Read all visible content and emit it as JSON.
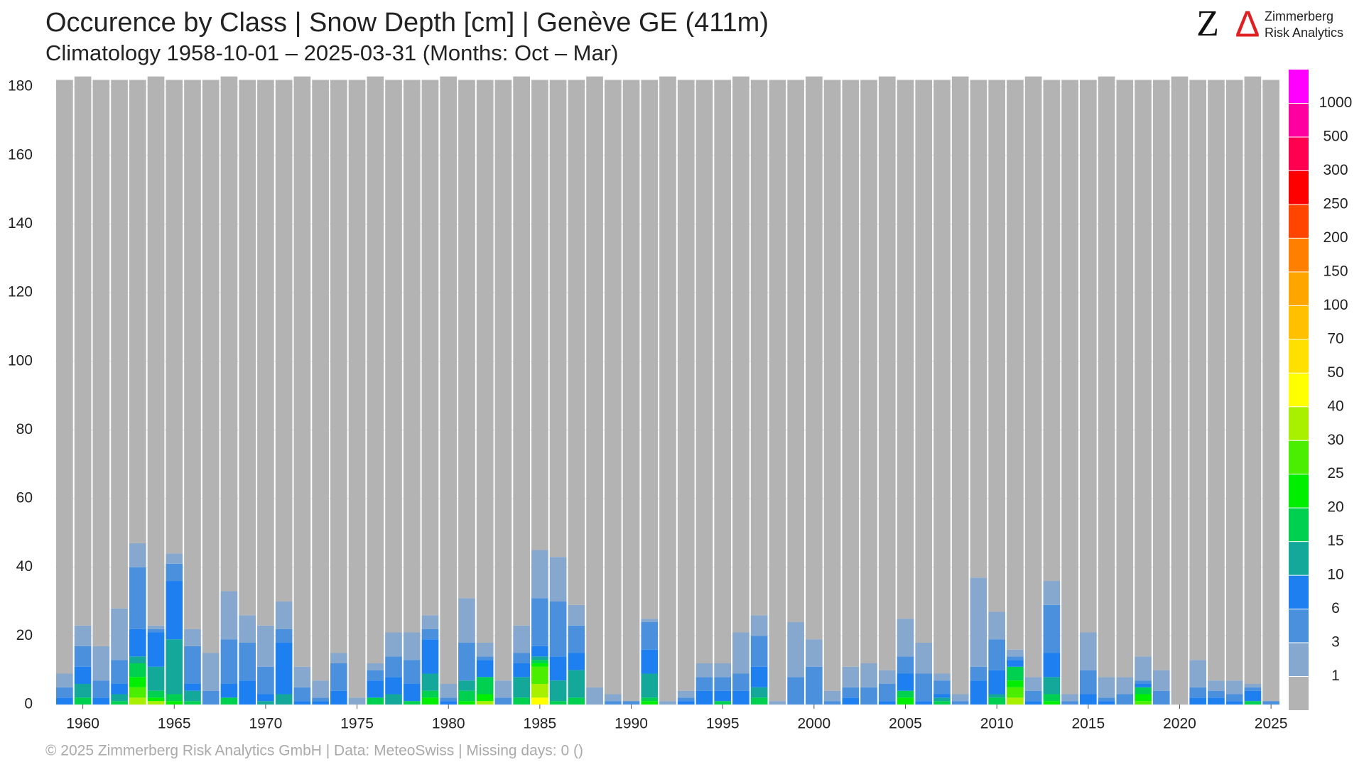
{
  "chart_data": {
    "type": "stacked_bar",
    "title": "Occurence by Class | Snow Depth [cm] | Genève  GE (411m)",
    "subtitle": "Climatology 1958-10-01 – 2025-03-31 (Months: Oct – Mar)",
    "footer": "©  2025 Zimmerberg Risk Analytics GmbH | Data: MeteoSwiss | Missing days: 0 ()",
    "categories": [
      null,
      "1960",
      null,
      null,
      null,
      null,
      "1965",
      null,
      null,
      null,
      null,
      "1970",
      null,
      null,
      null,
      null,
      "1975",
      null,
      null,
      null,
      null,
      "1980",
      null,
      null,
      null,
      null,
      "1985",
      null,
      null,
      null,
      null,
      "1990",
      null,
      null,
      null,
      null,
      "1995",
      null,
      null,
      null,
      null,
      "2000",
      null,
      null,
      null,
      null,
      "2005",
      null,
      null,
      null,
      null,
      "2010",
      null,
      null,
      null,
      null,
      "2015",
      null,
      null,
      null,
      null,
      "2020",
      null,
      null,
      null,
      null,
      "2025"
    ],
    "ylim": [
      0,
      185
    ],
    "yticks": [
      0,
      20,
      40,
      60,
      80,
      100,
      120,
      140,
      160,
      180
    ],
    "grid": true,
    "series": [
      {
        "color": "#ffff00",
        "values": [
          0,
          0,
          0,
          0,
          0,
          0,
          0,
          0,
          0,
          0,
          0,
          0,
          0,
          0,
          0,
          0,
          0,
          0,
          0,
          0,
          0,
          0,
          0,
          0,
          0,
          0,
          2,
          0,
          0,
          0,
          0,
          0,
          0,
          0,
          0,
          0,
          0,
          0,
          0,
          0,
          0,
          0,
          0,
          0,
          0,
          0,
          0,
          0,
          0,
          0,
          0,
          0,
          0,
          0,
          0,
          0,
          0,
          0,
          0,
          0,
          0,
          0,
          0,
          0,
          0,
          0,
          0
        ]
      },
      {
        "color": "#a8f000",
        "values": [
          0,
          0,
          0,
          0,
          2,
          1,
          0,
          0,
          0,
          0,
          0,
          0,
          0,
          0,
          0,
          0,
          0,
          0,
          0,
          0,
          0,
          0,
          0,
          1,
          0,
          0,
          4,
          0,
          0,
          0,
          0,
          0,
          0,
          0,
          0,
          0,
          0,
          0,
          0,
          0,
          0,
          0,
          0,
          0,
          0,
          0,
          0,
          0,
          0,
          0,
          0,
          0,
          2,
          0,
          0,
          0,
          0,
          0,
          0,
          0,
          0,
          0,
          0,
          0,
          0,
          0,
          0
        ]
      },
      {
        "color": "#4cee00",
        "values": [
          0,
          0,
          0,
          0,
          3,
          0,
          0,
          0,
          0,
          0,
          0,
          0,
          0,
          0,
          0,
          0,
          0,
          0,
          0,
          0,
          0,
          0,
          0,
          0,
          0,
          0,
          5,
          0,
          0,
          0,
          0,
          0,
          0,
          0,
          0,
          0,
          0,
          0,
          0,
          0,
          0,
          0,
          0,
          0,
          0,
          0,
          0,
          0,
          0,
          0,
          0,
          0,
          3,
          0,
          0,
          0,
          0,
          0,
          0,
          1,
          0,
          0,
          0,
          0,
          0,
          0,
          0
        ]
      },
      {
        "color": "#00ee00",
        "values": [
          0,
          0,
          0,
          0,
          3,
          1,
          1,
          0,
          0,
          0,
          0,
          0,
          0,
          0,
          0,
          0,
          0,
          0,
          0,
          0,
          2,
          0,
          1,
          2,
          0,
          0,
          1,
          0,
          0,
          0,
          0,
          0,
          1,
          0,
          0,
          0,
          0,
          0,
          0,
          0,
          0,
          0,
          0,
          0,
          0,
          0,
          2,
          0,
          0,
          0,
          0,
          0,
          2,
          0,
          1,
          0,
          0,
          0,
          0,
          2,
          0,
          0,
          0,
          0,
          0,
          0,
          0
        ]
      },
      {
        "color": "#00d050",
        "values": [
          0,
          2,
          0,
          1,
          4,
          2,
          2,
          1,
          0,
          2,
          0,
          0,
          0,
          0,
          0,
          0,
          0,
          2,
          0,
          1,
          2,
          0,
          3,
          5,
          0,
          2,
          1,
          1,
          2,
          0,
          0,
          0,
          1,
          0,
          0,
          0,
          1,
          0,
          2,
          0,
          0,
          0,
          0,
          0,
          0,
          0,
          2,
          0,
          1,
          0,
          0,
          2,
          4,
          0,
          2,
          0,
          0,
          0,
          0,
          2,
          0,
          0,
          0,
          0,
          0,
          1,
          0
        ]
      },
      {
        "color": "#14a89a",
        "values": [
          0,
          4,
          0,
          2,
          2,
          7,
          16,
          3,
          0,
          0,
          0,
          1,
          3,
          0,
          0,
          0,
          0,
          0,
          3,
          0,
          5,
          0,
          3,
          0,
          0,
          6,
          1,
          6,
          8,
          0,
          0,
          0,
          7,
          0,
          0,
          0,
          0,
          0,
          3,
          0,
          0,
          0,
          0,
          0,
          0,
          0,
          0,
          0,
          1,
          0,
          0,
          1,
          0,
          0,
          5,
          0,
          0,
          0,
          0,
          0,
          0,
          0,
          0,
          0,
          0,
          0,
          0
        ]
      },
      {
        "color": "#1e80f0",
        "values": [
          2,
          5,
          2,
          3,
          8,
          10,
          17,
          2,
          0,
          4,
          7,
          2,
          15,
          1,
          1,
          4,
          0,
          5,
          5,
          5,
          10,
          1,
          0,
          5,
          0,
          4,
          3,
          7,
          5,
          0,
          0,
          0,
          7,
          0,
          1,
          4,
          3,
          4,
          6,
          0,
          0,
          0,
          0,
          2,
          0,
          1,
          5,
          1,
          1,
          0,
          7,
          7,
          2,
          1,
          7,
          0,
          3,
          1,
          0,
          1,
          0,
          0,
          2,
          2,
          1,
          3,
          0
        ]
      },
      {
        "color": "#4a90dc",
        "values": [
          3,
          6,
          5,
          7,
          18,
          1,
          5,
          11,
          4,
          13,
          11,
          8,
          4,
          4,
          1,
          8,
          0,
          3,
          6,
          7,
          3,
          1,
          11,
          1,
          2,
          3,
          14,
          16,
          8,
          0,
          1,
          1,
          8,
          0,
          1,
          4,
          4,
          5,
          9,
          0,
          8,
          11,
          1,
          3,
          5,
          5,
          5,
          8,
          4,
          1,
          4,
          9,
          1,
          3,
          14,
          1,
          7,
          1,
          3,
          1,
          4,
          0,
          3,
          2,
          2,
          1,
          1
        ]
      },
      {
        "color": "#86a8cf",
        "values": [
          4,
          6,
          10,
          15,
          7,
          1,
          3,
          5,
          11,
          14,
          8,
          12,
          8,
          6,
          5,
          3,
          2,
          2,
          7,
          8,
          4,
          4,
          13,
          4,
          5,
          8,
          14,
          13,
          6,
          5,
          2,
          0,
          1,
          1,
          2,
          4,
          4,
          12,
          6,
          1,
          16,
          8,
          3,
          6,
          7,
          4,
          11,
          9,
          2,
          2,
          26,
          8,
          2,
          4,
          7,
          2,
          11,
          6,
          5,
          7,
          6,
          0,
          8,
          3,
          4,
          1,
          0
        ]
      },
      {
        "color": "#b3b3b3",
        "values": [
          173,
          160,
          165,
          154,
          135,
          160,
          138,
          160,
          167,
          150,
          156,
          159,
          152,
          172,
          175,
          167,
          180,
          171,
          161,
          161,
          156,
          177,
          151,
          164,
          175,
          160,
          137,
          139,
          153,
          178,
          179,
          181,
          157,
          182,
          178,
          170,
          170,
          162,
          156,
          181,
          158,
          164,
          178,
          171,
          170,
          173,
          157,
          164,
          173,
          180,
          145,
          155,
          166,
          175,
          146,
          179,
          161,
          175,
          174,
          168,
          172,
          183,
          169,
          175,
          175,
          177,
          181
        ]
      }
    ],
    "colorbar": {
      "colors": [
        "#b3b3b3",
        "#86a8cf",
        "#4a90dc",
        "#1e80f0",
        "#14a89a",
        "#00d050",
        "#00ee00",
        "#4cee00",
        "#a8f000",
        "#ffff00",
        "#ffe000",
        "#ffc000",
        "#ffa500",
        "#ff7f00",
        "#ff4500",
        "#ff0000",
        "#ff0050",
        "#ff00a0",
        "#ff00ff"
      ],
      "ticks": [
        1,
        3,
        6,
        10,
        15,
        20,
        25,
        30,
        40,
        50,
        70,
        100,
        150,
        200,
        250,
        300,
        500,
        1000
      ]
    }
  },
  "logo": {
    "z": "Z",
    "delta": "Δ",
    "line1": "Zimmerberg",
    "line2": "Risk Analytics"
  }
}
